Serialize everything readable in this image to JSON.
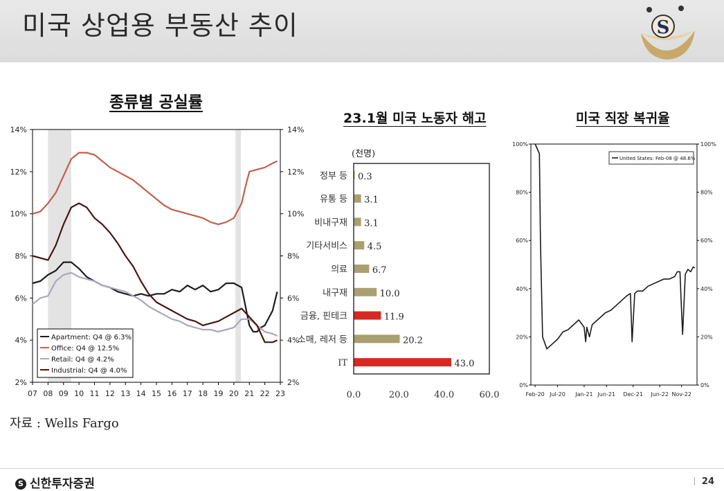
{
  "slide": {
    "title": "미국 상업용 부동산 추이",
    "page": "24"
  },
  "footer": {
    "source": "자료 : Wells Fargo",
    "brand": "신한투자증권"
  },
  "colors": {
    "apartment": "#1c1c1c",
    "office": "#c0604a",
    "retail": "#a9a9b7",
    "industrial": "#4a1414",
    "bar_khaki": "#a8a070",
    "bar_red": "#d42a22",
    "recession": "#e3e3e3"
  },
  "chart_data": [
    {
      "type": "line",
      "title": "종류별 공실률",
      "xlabels": [
        "07",
        "08",
        "09",
        "10",
        "11",
        "12",
        "13",
        "14",
        "15",
        "16",
        "17",
        "18",
        "19",
        "20",
        "21",
        "22",
        "23"
      ],
      "ylim": [
        2,
        14
      ],
      "yticks": [
        "2%",
        "4%",
        "6%",
        "8%",
        "10%",
        "12%",
        "14%"
      ],
      "shaded_periods": [
        [
          2008.0,
          2009.5
        ],
        [
          2020.1,
          2020.45
        ]
      ],
      "series": [
        {
          "name": "Apartment: Q4 @ 6.3%",
          "x": [
            2007.0,
            2007.5,
            2008.0,
            2008.5,
            2009.0,
            2009.5,
            2010.0,
            2010.5,
            2011.0,
            2011.5,
            2012.0,
            2012.5,
            2013.0,
            2013.5,
            2014.0,
            2014.5,
            2015.0,
            2015.5,
            2016.0,
            2016.5,
            2017.0,
            2017.5,
            2018.0,
            2018.5,
            2019.0,
            2019.5,
            2020.0,
            2020.5,
            2021.0,
            2021.25,
            2021.5,
            2021.75,
            2022.0,
            2022.5,
            2022.8
          ],
          "y": [
            6.7,
            6.8,
            7.1,
            7.3,
            7.7,
            7.7,
            7.4,
            7.0,
            6.8,
            6.6,
            6.5,
            6.3,
            6.2,
            6.1,
            6.2,
            6.1,
            6.2,
            6.2,
            6.4,
            6.3,
            6.6,
            6.4,
            6.6,
            6.3,
            6.4,
            6.7,
            6.7,
            6.5,
            4.7,
            4.4,
            4.4,
            4.6,
            4.7,
            5.4,
            6.3
          ]
        },
        {
          "name": "Office: Q4 @ 12.5%",
          "x": [
            2007.0,
            2007.5,
            2008.0,
            2008.5,
            2009.0,
            2009.5,
            2010.0,
            2010.5,
            2011.0,
            2011.5,
            2012.0,
            2012.5,
            2013.0,
            2013.5,
            2014.0,
            2014.5,
            2015.0,
            2015.5,
            2016.0,
            2016.5,
            2017.0,
            2017.5,
            2018.0,
            2018.5,
            2019.0,
            2019.5,
            2020.0,
            2020.5,
            2020.75,
            2021.0,
            2021.5,
            2022.0,
            2022.5,
            2022.8
          ],
          "y": [
            10.0,
            10.1,
            10.5,
            11.0,
            11.8,
            12.6,
            12.9,
            12.9,
            12.8,
            12.5,
            12.2,
            12.0,
            11.8,
            11.6,
            11.3,
            11.0,
            10.7,
            10.4,
            10.2,
            10.1,
            10.0,
            9.9,
            9.8,
            9.6,
            9.5,
            9.6,
            9.8,
            10.5,
            11.3,
            12.0,
            12.1,
            12.2,
            12.4,
            12.5
          ]
        },
        {
          "name": "Retail: Q4 @ 4.2%",
          "x": [
            2007.0,
            2007.5,
            2008.0,
            2008.5,
            2009.0,
            2009.5,
            2010.0,
            2010.5,
            2011.0,
            2011.5,
            2012.0,
            2012.5,
            2013.0,
            2013.5,
            2014.0,
            2014.5,
            2015.0,
            2015.5,
            2016.0,
            2016.5,
            2017.0,
            2017.5,
            2018.0,
            2018.5,
            2019.0,
            2019.5,
            2020.0,
            2020.5,
            2021.0,
            2021.5,
            2022.0,
            2022.5,
            2022.8
          ],
          "y": [
            5.7,
            6.0,
            6.1,
            6.8,
            7.1,
            7.2,
            7.0,
            6.9,
            6.8,
            6.6,
            6.5,
            6.4,
            6.3,
            6.1,
            5.9,
            5.6,
            5.4,
            5.2,
            5.0,
            4.9,
            4.7,
            4.6,
            4.5,
            4.5,
            4.4,
            4.5,
            4.6,
            5.0,
            5.0,
            4.7,
            4.4,
            4.3,
            4.2
          ]
        },
        {
          "name": "Industrial: Q4 @ 4.0%",
          "x": [
            2007.0,
            2007.5,
            2008.0,
            2008.5,
            2009.0,
            2009.5,
            2010.0,
            2010.5,
            2011.0,
            2011.5,
            2012.0,
            2012.5,
            2013.0,
            2013.5,
            2014.0,
            2014.5,
            2015.0,
            2015.5,
            2016.0,
            2016.5,
            2017.0,
            2017.5,
            2018.0,
            2018.5,
            2019.0,
            2019.5,
            2020.0,
            2020.5,
            2021.0,
            2021.5,
            2022.0,
            2022.5,
            2022.8
          ],
          "y": [
            8.0,
            7.9,
            7.8,
            8.5,
            9.5,
            10.3,
            10.5,
            10.3,
            9.8,
            9.5,
            9.1,
            8.6,
            8.0,
            7.5,
            6.8,
            6.2,
            5.8,
            5.6,
            5.4,
            5.2,
            5.0,
            4.9,
            4.7,
            4.8,
            4.9,
            5.1,
            5.3,
            5.5,
            5.1,
            4.7,
            3.9,
            3.9,
            4.0
          ]
        }
      ]
    },
    {
      "type": "bar",
      "title": "23.1월 미국 노동자 해고",
      "unit": "(천명)",
      "categories": [
        "정부 등",
        "유통 등",
        "비내구재",
        "기타서비스",
        "의료",
        "내구재",
        "금융, 핀테크",
        "소매, 레저 등",
        "IT"
      ],
      "values": [
        0.3,
        3.1,
        3.1,
        4.5,
        6.7,
        10.0,
        11.9,
        20.2,
        43.0
      ],
      "value_labels": [
        "0.3",
        "3.1",
        "3.1",
        "4.5",
        "6.7",
        "10.0",
        "11.9",
        "20.2",
        "43.0"
      ],
      "highlight": [
        false,
        false,
        false,
        false,
        false,
        false,
        true,
        false,
        true
      ],
      "xlim": [
        0,
        60
      ],
      "xticks": [
        "0.0",
        "20.0",
        "40.0",
        "60.0"
      ]
    },
    {
      "type": "line",
      "title": "미국 직장 복귀율",
      "xlabels": [
        "Feb-20",
        "Jul-20",
        "Jan-21",
        "Jun-21",
        "Dec-21",
        "Jun-22",
        "Nov-22"
      ],
      "ylim": [
        0,
        100
      ],
      "yticks": [
        "0%",
        "20%",
        "40%",
        "60%",
        "80%",
        "100%"
      ],
      "series": [
        {
          "name": "United States: Feb-08 @ 48.6%",
          "x": [
            2020.08,
            2020.12,
            2020.16,
            2020.18,
            2020.22,
            2020.3,
            2020.4,
            2020.5,
            2020.6,
            2020.7,
            2020.8,
            2020.9,
            2021.0,
            2021.03,
            2021.05,
            2021.1,
            2021.15,
            2021.2,
            2021.3,
            2021.4,
            2021.5,
            2021.6,
            2021.7,
            2021.8,
            2021.87,
            2021.9,
            2021.95,
            2022.0,
            2022.1,
            2022.2,
            2022.3,
            2022.4,
            2022.5,
            2022.6,
            2022.7,
            2022.75,
            2022.8,
            2022.82,
            2022.85,
            2022.9,
            2022.95,
            2023.0,
            2023.05,
            2023.08
          ],
          "y": [
            100,
            98,
            96,
            60,
            20,
            15,
            17,
            19,
            22,
            23,
            25,
            27,
            24,
            18,
            24,
            20,
            25,
            26,
            28,
            30,
            31,
            33,
            35,
            37,
            38,
            18,
            38,
            39,
            39,
            41,
            42,
            43,
            44,
            44,
            45,
            47,
            47,
            36,
            21,
            46,
            48,
            47,
            49,
            48.6
          ]
        }
      ]
    }
  ]
}
